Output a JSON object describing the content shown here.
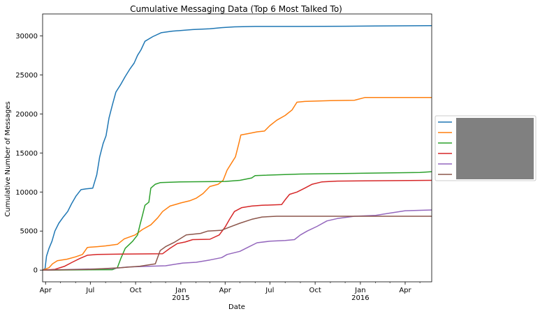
{
  "chart_data": {
    "type": "line",
    "title": "Cumulative Messaging Data (Top 6 Most Talked To)",
    "xlabel": "Date",
    "ylabel": "Cumulative Number of Messages",
    "xlim": [
      "2014-03-26",
      "2016-05-25"
    ],
    "ylim": [
      -1500,
      32800
    ],
    "grid": false,
    "legend_position": "center-right (outside plot area)",
    "legend_labels_redacted": true,
    "yticks": [
      0,
      5000,
      10000,
      15000,
      20000,
      25000,
      30000
    ],
    "yticklabels": [
      "0",
      "5000",
      "10000",
      "15000",
      "20000",
      "25000",
      "30000"
    ],
    "xticks": [
      {
        "date": "2014-04-01",
        "label": "Apr",
        "year": ""
      },
      {
        "date": "2014-07-01",
        "label": "Jul",
        "year": ""
      },
      {
        "date": "2014-10-01",
        "label": "Oct",
        "year": ""
      },
      {
        "date": "2015-01-01",
        "label": "Jan",
        "year": "2015"
      },
      {
        "date": "2015-04-01",
        "label": "Apr",
        "year": ""
      },
      {
        "date": "2015-07-01",
        "label": "Jul",
        "year": ""
      },
      {
        "date": "2015-10-01",
        "label": "Oct",
        "year": ""
      },
      {
        "date": "2016-01-01",
        "label": "Jan",
        "year": "2016"
      },
      {
        "date": "2016-04-01",
        "label": "Apr",
        "year": ""
      }
    ],
    "series": [
      {
        "color": "#1f77b4",
        "points": [
          [
            "2014-03-26",
            0
          ],
          [
            "2014-03-31",
            200
          ],
          [
            "2014-04-03",
            1800
          ],
          [
            "2014-04-08",
            2800
          ],
          [
            "2014-04-14",
            3700
          ],
          [
            "2014-04-20",
            5000
          ],
          [
            "2014-04-28",
            6000
          ],
          [
            "2014-05-07",
            6800
          ],
          [
            "2014-05-16",
            7500
          ],
          [
            "2014-05-24",
            8500
          ],
          [
            "2014-06-02",
            9500
          ],
          [
            "2014-06-12",
            10300
          ],
          [
            "2014-06-22",
            10400
          ],
          [
            "2014-07-06",
            10500
          ],
          [
            "2014-07-14",
            12200
          ],
          [
            "2014-07-20",
            14500
          ],
          [
            "2014-07-27",
            16200
          ],
          [
            "2014-08-02",
            17200
          ],
          [
            "2014-08-08",
            19500
          ],
          [
            "2014-08-15",
            21200
          ],
          [
            "2014-08-22",
            22800
          ],
          [
            "2014-09-01",
            23800
          ],
          [
            "2014-09-10",
            24800
          ],
          [
            "2014-09-20",
            25800
          ],
          [
            "2014-09-28",
            26500
          ],
          [
            "2014-10-05",
            27500
          ],
          [
            "2014-10-12",
            28200
          ],
          [
            "2014-10-20",
            29300
          ],
          [
            "2014-11-05",
            29900
          ],
          [
            "2014-11-22",
            30400
          ],
          [
            "2014-12-15",
            30600
          ],
          [
            "2015-01-05",
            30700
          ],
          [
            "2015-01-25",
            30800
          ],
          [
            "2015-03-01",
            30900
          ],
          [
            "2015-03-25",
            31050
          ],
          [
            "2015-04-20",
            31150
          ],
          [
            "2015-06-01",
            31200
          ],
          [
            "2015-09-01",
            31200
          ],
          [
            "2015-12-01",
            31230
          ],
          [
            "2016-02-01",
            31260
          ],
          [
            "2016-05-25",
            31300
          ]
        ]
      },
      {
        "color": "#ff7f0e",
        "points": [
          [
            "2014-03-26",
            0
          ],
          [
            "2014-04-08",
            300
          ],
          [
            "2014-04-15",
            800
          ],
          [
            "2014-04-25",
            1200
          ],
          [
            "2014-05-15",
            1400
          ],
          [
            "2014-06-01",
            1700
          ],
          [
            "2014-06-15",
            2000
          ],
          [
            "2014-06-25",
            2900
          ],
          [
            "2014-07-15",
            3000
          ],
          [
            "2014-08-01",
            3100
          ],
          [
            "2014-08-25",
            3300
          ],
          [
            "2014-09-08",
            4000
          ],
          [
            "2014-09-30",
            4500
          ],
          [
            "2014-10-15",
            5200
          ],
          [
            "2014-11-01",
            5800
          ],
          [
            "2014-11-15",
            6700
          ],
          [
            "2014-11-25",
            7500
          ],
          [
            "2014-12-10",
            8200
          ],
          [
            "2015-01-01",
            8600
          ],
          [
            "2015-01-20",
            8900
          ],
          [
            "2015-02-01",
            9200
          ],
          [
            "2015-02-15",
            9800
          ],
          [
            "2015-03-01",
            10700
          ],
          [
            "2015-03-18",
            11000
          ],
          [
            "2015-03-28",
            11500
          ],
          [
            "2015-04-05",
            12800
          ],
          [
            "2015-04-15",
            13800
          ],
          [
            "2015-04-22",
            14500
          ],
          [
            "2015-04-28",
            16000
          ],
          [
            "2015-05-03",
            17300
          ],
          [
            "2015-05-20",
            17500
          ],
          [
            "2015-06-05",
            17700
          ],
          [
            "2015-06-20",
            17800
          ],
          [
            "2015-07-01",
            18500
          ],
          [
            "2015-07-15",
            19200
          ],
          [
            "2015-08-01",
            19800
          ],
          [
            "2015-08-15",
            20500
          ],
          [
            "2015-08-25",
            21500
          ],
          [
            "2015-09-10",
            21600
          ],
          [
            "2015-11-01",
            21700
          ],
          [
            "2015-12-20",
            21750
          ],
          [
            "2016-01-10",
            22100
          ],
          [
            "2016-05-25",
            22100
          ]
        ]
      },
      {
        "color": "#2ca02c",
        "points": [
          [
            "2014-03-26",
            0
          ],
          [
            "2014-08-15",
            50
          ],
          [
            "2014-08-25",
            300
          ],
          [
            "2014-09-01",
            1500
          ],
          [
            "2014-09-10",
            2800
          ],
          [
            "2014-09-25",
            3700
          ],
          [
            "2014-10-05",
            4500
          ],
          [
            "2014-10-10",
            5800
          ],
          [
            "2014-10-15",
            7000
          ],
          [
            "2014-10-20",
            8300
          ],
          [
            "2014-10-28",
            8700
          ],
          [
            "2014-11-01",
            10500
          ],
          [
            "2014-11-10",
            11000
          ],
          [
            "2014-11-20",
            11200
          ],
          [
            "2015-01-01",
            11300
          ],
          [
            "2015-04-01",
            11350
          ],
          [
            "2015-05-01",
            11500
          ],
          [
            "2015-05-25",
            11800
          ],
          [
            "2015-06-01",
            12100
          ],
          [
            "2015-09-01",
            12300
          ],
          [
            "2016-01-01",
            12400
          ],
          [
            "2016-05-01",
            12500
          ],
          [
            "2016-05-25",
            12600
          ]
        ]
      },
      {
        "color": "#d62728",
        "points": [
          [
            "2014-03-26",
            0
          ],
          [
            "2014-04-20",
            100
          ],
          [
            "2014-05-10",
            500
          ],
          [
            "2014-05-25",
            1000
          ],
          [
            "2014-06-10",
            1500
          ],
          [
            "2014-06-25",
            1900
          ],
          [
            "2014-07-15",
            2000
          ],
          [
            "2014-09-01",
            2050
          ],
          [
            "2014-11-25",
            2100
          ],
          [
            "2014-12-10",
            2800
          ],
          [
            "2014-12-25",
            3400
          ],
          [
            "2015-01-10",
            3600
          ],
          [
            "2015-01-25",
            3900
          ],
          [
            "2015-03-01",
            3950
          ],
          [
            "2015-03-20",
            4500
          ],
          [
            "2015-04-01",
            5500
          ],
          [
            "2015-04-10",
            6500
          ],
          [
            "2015-04-20",
            7500
          ],
          [
            "2015-05-05",
            8000
          ],
          [
            "2015-05-25",
            8200
          ],
          [
            "2015-06-15",
            8300
          ],
          [
            "2015-07-25",
            8400
          ],
          [
            "2015-08-01",
            9000
          ],
          [
            "2015-08-10",
            9700
          ],
          [
            "2015-08-25",
            10000
          ],
          [
            "2015-09-10",
            10500
          ],
          [
            "2015-09-25",
            11000
          ],
          [
            "2015-10-15",
            11300
          ],
          [
            "2015-11-15",
            11400
          ],
          [
            "2016-05-25",
            11500
          ]
        ]
      },
      {
        "color": "#9467bd",
        "points": [
          [
            "2014-03-26",
            0
          ],
          [
            "2014-06-01",
            100
          ],
          [
            "2014-08-15",
            200
          ],
          [
            "2014-09-15",
            400
          ],
          [
            "2014-11-01",
            500
          ],
          [
            "2014-12-01",
            550
          ],
          [
            "2015-01-05",
            900
          ],
          [
            "2015-02-01",
            1000
          ],
          [
            "2015-03-01",
            1300
          ],
          [
            "2015-03-25",
            1600
          ],
          [
            "2015-04-05",
            2000
          ],
          [
            "2015-05-01",
            2400
          ],
          [
            "2015-05-20",
            3000
          ],
          [
            "2015-06-05",
            3500
          ],
          [
            "2015-07-01",
            3700
          ],
          [
            "2015-08-01",
            3800
          ],
          [
            "2015-08-20",
            3900
          ],
          [
            "2015-09-01",
            4500
          ],
          [
            "2015-09-15",
            5000
          ],
          [
            "2015-10-05",
            5600
          ],
          [
            "2015-10-25",
            6300
          ],
          [
            "2015-11-15",
            6600
          ],
          [
            "2015-12-20",
            6900
          ],
          [
            "2016-02-01",
            7000
          ],
          [
            "2016-03-01",
            7300
          ],
          [
            "2016-04-01",
            7600
          ],
          [
            "2016-05-25",
            7700
          ]
        ]
      },
      {
        "color": "#8c564b",
        "points": [
          [
            "2014-03-26",
            0
          ],
          [
            "2014-07-01",
            100
          ],
          [
            "2014-09-01",
            300
          ],
          [
            "2014-10-10",
            500
          ],
          [
            "2014-11-10",
            800
          ],
          [
            "2014-11-20",
            2500
          ],
          [
            "2014-12-01",
            3000
          ],
          [
            "2014-12-20",
            3600
          ],
          [
            "2015-01-12",
            4500
          ],
          [
            "2015-02-10",
            4700
          ],
          [
            "2015-02-25",
            5000
          ],
          [
            "2015-03-25",
            5100
          ],
          [
            "2015-04-10",
            5500
          ],
          [
            "2015-05-01",
            6000
          ],
          [
            "2015-05-25",
            6500
          ],
          [
            "2015-06-15",
            6800
          ],
          [
            "2015-07-15",
            6900
          ],
          [
            "2016-05-25",
            6900
          ]
        ]
      }
    ]
  }
}
